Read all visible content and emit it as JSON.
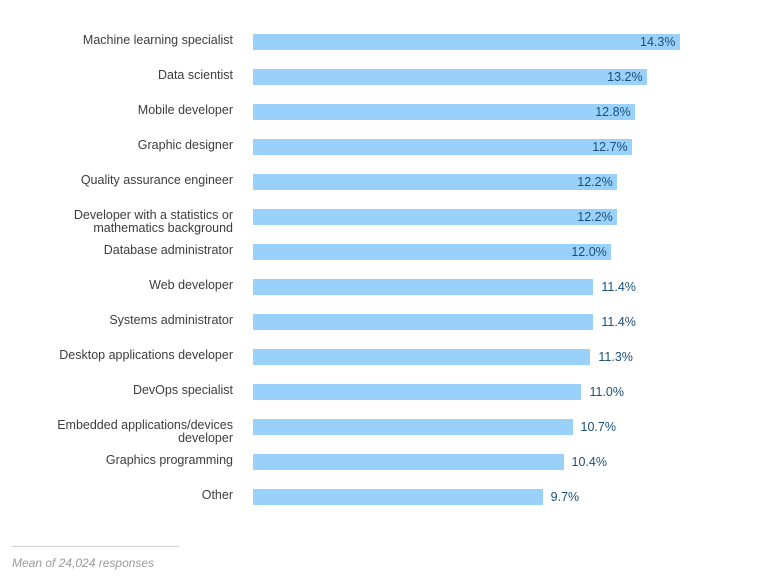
{
  "chart_data": {
    "type": "bar",
    "orientation": "horizontal",
    "title": "",
    "xlabel": "",
    "ylabel": "",
    "categories": [
      "Machine learning specialist",
      "Data scientist",
      "Mobile developer",
      "Graphic designer",
      "Quality assurance engineer",
      "Developer with a statistics or mathematics background",
      "Database administrator",
      "Web developer",
      "Systems administrator",
      "Desktop applications developer",
      "DevOps specialist",
      "Embedded applications/devices developer",
      "Graphics programming",
      "Other"
    ],
    "category_lines": [
      [
        "Machine learning specialist"
      ],
      [
        "Data scientist"
      ],
      [
        "Mobile developer"
      ],
      [
        "Graphic designer"
      ],
      [
        "Quality assurance engineer"
      ],
      [
        "Developer with a statistics or",
        "mathematics background"
      ],
      [
        "Database administrator"
      ],
      [
        "Web developer"
      ],
      [
        "Systems administrator"
      ],
      [
        "Desktop applications developer"
      ],
      [
        "DevOps specialist"
      ],
      [
        "Embedded applications/devices",
        "developer"
      ],
      [
        "Graphics programming"
      ],
      [
        "Other"
      ]
    ],
    "values": [
      14.3,
      13.2,
      12.8,
      12.7,
      12.2,
      12.2,
      12.0,
      11.4,
      11.4,
      11.3,
      11.0,
      10.7,
      10.4,
      9.7
    ],
    "value_labels": [
      "14.3%",
      "13.2%",
      "12.8%",
      "12.7%",
      "12.2%",
      "12.2%",
      "12.0%",
      "11.4%",
      "11.4%",
      "11.3%",
      "11.0%",
      "10.7%",
      "10.4%",
      "9.7%"
    ],
    "unit": "%",
    "xlim": [
      0,
      14.3
    ],
    "grid": false,
    "legend": "none",
    "bar_color": "#99d1fa",
    "label_color": "#1a4f7a"
  },
  "footnote": "Mean of 24,024 responses"
}
